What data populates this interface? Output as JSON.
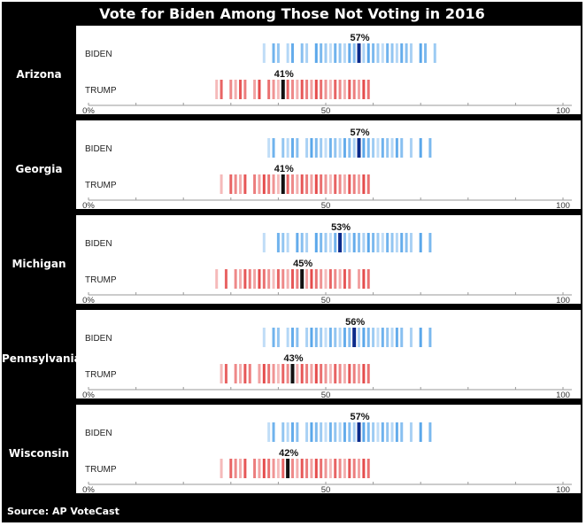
{
  "title": "Vote for Biden Among Those Not Voting in 2016",
  "source": "Source: AP VoteCast",
  "colors": {
    "biden_strip": "#4a9ee8",
    "biden_median": "#0b2a8a",
    "trump_strip": "#e23a3a",
    "trump_median": "#111111",
    "background": "#000000",
    "panel": "#ffffff"
  },
  "chart_data": [
    {
      "type": "strip",
      "state": "Arizona",
      "xlim": [
        0,
        100
      ],
      "x_ticks": [
        "0%",
        "50",
        "100"
      ],
      "series": [
        {
          "name": "BIDEN",
          "median": 57,
          "median_label": "57%",
          "values": [
            37,
            39,
            40,
            42,
            43,
            45,
            46,
            48,
            49,
            50,
            51,
            52,
            53,
            54,
            55,
            56,
            58,
            59,
            60,
            61,
            62,
            63,
            64,
            65,
            66,
            67,
            68,
            70,
            71,
            73
          ]
        },
        {
          "name": "TRUMP",
          "median": 41,
          "median_label": "41%",
          "values": [
            27,
            28,
            30,
            31,
            32,
            33,
            35,
            36,
            38,
            39,
            40,
            42,
            43,
            44,
            45,
            46,
            47,
            48,
            49,
            50,
            51,
            52,
            53,
            54,
            55,
            56,
            57,
            58,
            59
          ]
        }
      ]
    },
    {
      "type": "strip",
      "state": "Georgia",
      "xlim": [
        0,
        100
      ],
      "x_ticks": [
        "0%",
        "50",
        "100"
      ],
      "series": [
        {
          "name": "BIDEN",
          "median": 57,
          "median_label": "57%",
          "values": [
            38,
            39,
            41,
            42,
            43,
            44,
            46,
            47,
            48,
            49,
            50,
            51,
            52,
            53,
            54,
            55,
            56,
            58,
            59,
            60,
            61,
            62,
            63,
            64,
            65,
            66,
            68,
            70,
            72
          ]
        },
        {
          "name": "TRUMP",
          "median": 41,
          "median_label": "41%",
          "values": [
            28,
            30,
            31,
            32,
            33,
            35,
            36,
            37,
            38,
            39,
            40,
            42,
            43,
            44,
            45,
            46,
            47,
            48,
            49,
            50,
            51,
            52,
            53,
            54,
            55,
            56,
            57,
            58,
            59
          ]
        }
      ]
    },
    {
      "type": "strip",
      "state": "Michigan",
      "xlim": [
        0,
        100
      ],
      "x_ticks": [
        "0%",
        "50",
        "100"
      ],
      "series": [
        {
          "name": "BIDEN",
          "median": 53,
          "median_label": "53%",
          "values": [
            37,
            40,
            41,
            42,
            44,
            45,
            46,
            48,
            49,
            50,
            51,
            52,
            54,
            55,
            56,
            57,
            58,
            59,
            60,
            61,
            62,
            63,
            64,
            65,
            66,
            67,
            68,
            70,
            72
          ]
        },
        {
          "name": "TRUMP",
          "median": 45,
          "median_label": "45%",
          "values": [
            27,
            29,
            31,
            32,
            33,
            34,
            35,
            36,
            37,
            38,
            39,
            40,
            41,
            42,
            43,
            44,
            46,
            47,
            48,
            49,
            50,
            51,
            52,
            53,
            54,
            55,
            57,
            58,
            59
          ]
        }
      ]
    },
    {
      "type": "strip",
      "state": "Pennsylvania",
      "xlim": [
        0,
        100
      ],
      "x_ticks": [
        "0%",
        "50",
        "100"
      ],
      "series": [
        {
          "name": "BIDEN",
          "median": 56,
          "median_label": "56%",
          "values": [
            37,
            39,
            40,
            42,
            43,
            44,
            46,
            47,
            48,
            49,
            50,
            51,
            52,
            53,
            54,
            55,
            57,
            58,
            59,
            60,
            61,
            62,
            63,
            64,
            65,
            66,
            68,
            70,
            72
          ]
        },
        {
          "name": "TRUMP",
          "median": 43,
          "median_label": "43%",
          "values": [
            28,
            29,
            31,
            32,
            33,
            34,
            36,
            37,
            38,
            39,
            40,
            41,
            42,
            44,
            45,
            46,
            47,
            48,
            49,
            50,
            51,
            52,
            53,
            54,
            55,
            56,
            57,
            58,
            59
          ]
        }
      ]
    },
    {
      "type": "strip",
      "state": "Wisconsin",
      "xlim": [
        0,
        100
      ],
      "x_ticks": [
        "0%",
        "50",
        "100"
      ],
      "series": [
        {
          "name": "BIDEN",
          "median": 57,
          "median_label": "57%",
          "values": [
            38,
            39,
            41,
            42,
            43,
            44,
            46,
            47,
            48,
            49,
            50,
            51,
            52,
            53,
            54,
            55,
            56,
            58,
            59,
            60,
            61,
            62,
            63,
            64,
            65,
            66,
            68,
            70,
            72
          ]
        },
        {
          "name": "TRUMP",
          "median": 42,
          "median_label": "42%",
          "values": [
            28,
            30,
            31,
            32,
            33,
            35,
            36,
            37,
            38,
            39,
            40,
            41,
            43,
            44,
            45,
            46,
            47,
            48,
            49,
            50,
            51,
            52,
            53,
            54,
            55,
            56,
            57,
            58,
            59
          ]
        }
      ]
    }
  ]
}
